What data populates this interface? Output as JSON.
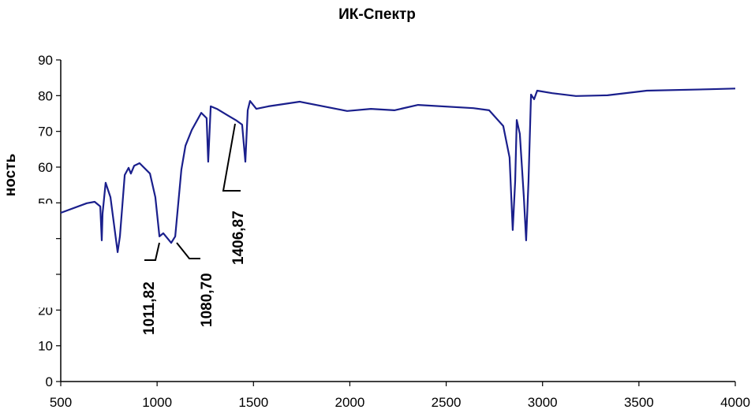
{
  "chart_data": {
    "type": "line",
    "title": "ИК-Спектр",
    "ylabel": "ность",
    "xlabel": "",
    "xlim": [
      500,
      4000
    ],
    "ylim": [
      0,
      90
    ],
    "x_ticks": [
      "500",
      "1000",
      "1500",
      "2000",
      "2500",
      "3000",
      "3500",
      "4000"
    ],
    "y_ticks": [
      "0",
      "10",
      "20",
      "30",
      "40",
      "50",
      "60",
      "70",
      "80",
      "90"
    ],
    "y_tick_labels_visible": [
      "0",
      "10",
      "20",
      "50",
      "60",
      "70",
      "80",
      "90"
    ],
    "grid": false,
    "line_color": "#1a1f8c",
    "series": [
      {
        "x": [
          500,
          635,
          676,
          705,
          713,
          717,
          733,
          758,
          795,
          807,
          832,
          852,
          864,
          881,
          909,
          963,
          991,
          1012,
          1032,
          1073,
          1094,
          1126,
          1147,
          1180,
          1229,
          1257,
          1265,
          1278,
          1310,
          1372,
          1413,
          1441,
          1458,
          1470,
          1482,
          1515,
          1577,
          1740,
          1986,
          2109,
          2231,
          2354,
          2641,
          2723,
          2796,
          2829,
          2845,
          2858,
          2866,
          2882,
          2903,
          2915,
          2927,
          2940,
          2956,
          2972,
          3050,
          3173,
          3337,
          3541,
          3869,
          4000
        ],
        "y": [
          47.2,
          49.9,
          50.3,
          49,
          39.5,
          47,
          55.6,
          51.6,
          36.2,
          40.6,
          57.8,
          59.8,
          58.2,
          60.4,
          61.1,
          58.2,
          51.6,
          40.6,
          41.5,
          38.8,
          40.6,
          59.3,
          66,
          70.4,
          75.2,
          73.7,
          61.5,
          77,
          76.3,
          74.3,
          73,
          71.9,
          61.5,
          75.9,
          78.5,
          76.3,
          77,
          78.3,
          75.7,
          76.3,
          75.9,
          77.4,
          76.5,
          75.9,
          71.5,
          62.7,
          42.4,
          56,
          73.2,
          69.3,
          51.6,
          39.5,
          56,
          80.3,
          79,
          81.4,
          80.7,
          79.9,
          80.1,
          81.4,
          81.8,
          82
        ]
      }
    ],
    "annotations": [
      {
        "text": "1011,82",
        "x": 1012,
        "y": 40.6
      },
      {
        "text": "1080,70",
        "x": 1094,
        "y": 40.6
      },
      {
        "text": "1406,87",
        "x": 1413,
        "y": 73
      }
    ]
  }
}
